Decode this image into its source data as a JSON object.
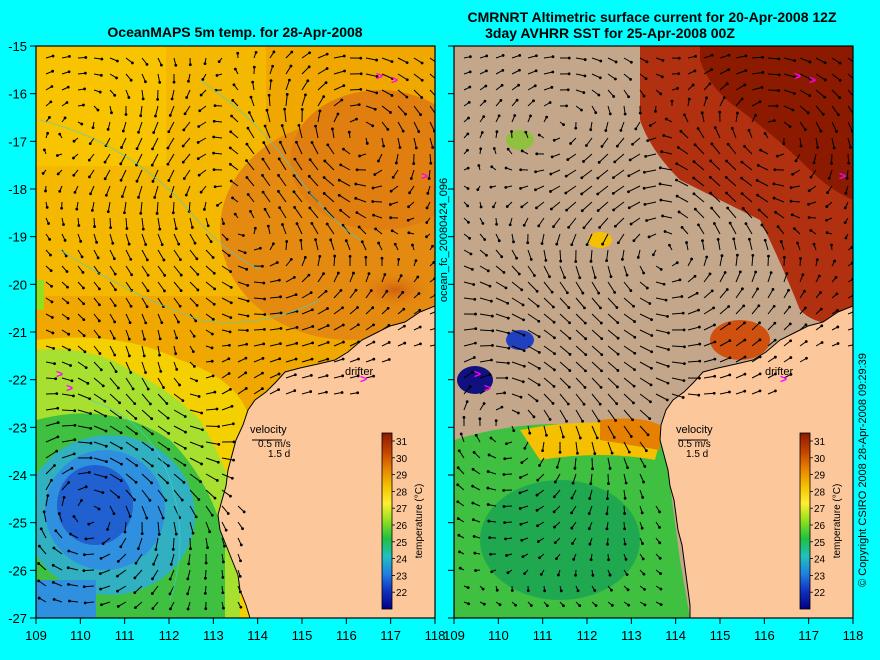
{
  "left_panel": {
    "title": "OceanMAPS 5m temp. for 28-Apr-2008",
    "x_ticks": [
      "109",
      "110",
      "111",
      "112",
      "113",
      "114",
      "115",
      "116",
      "117",
      "118"
    ],
    "y_ticks": [
      "-15",
      "-16",
      "-17",
      "-18",
      "-19",
      "-20",
      "-21",
      "-22",
      "-23",
      "-24",
      "-25",
      "-26",
      "-27"
    ],
    "drifter_label": "drifter",
    "velocity_label": "velocity",
    "velocity_scale": "0.5 m/s",
    "velocity_days": "1.5 d",
    "colorbar_label": "temperature (°C)",
    "colorbar_ticks": [
      "31",
      "30",
      "29",
      "28",
      "27",
      "26",
      "25",
      "24",
      "23",
      "22"
    ]
  },
  "right_panel": {
    "title_line1": "CMRNRT Altimetric surface current for 20-Apr-2008 12Z",
    "title_line2": "3day AVHRR SST for 25-Apr-2008 00Z",
    "x_ticks": [
      "109",
      "110",
      "111",
      "112",
      "113",
      "114",
      "115",
      "116",
      "117",
      "118"
    ],
    "drifter_label": "drifter",
    "velocity_label": "velocity",
    "velocity_scale": "0.5 m/s",
    "velocity_days": "1.5 d",
    "colorbar_label": "temperature (°C)",
    "colorbar_ticks": [
      "31",
      "30",
      "29",
      "28",
      "27",
      "26",
      "25",
      "24",
      "23",
      "22"
    ]
  },
  "side_label": "ocean_fc_20080424_096",
  "copyright": "© Copyright CSIRO 2008   28-Apr-2008 09:29:39",
  "colors": {
    "background": "#00ffff",
    "land": "#fcc89b",
    "cloud": "#c4a78a",
    "coast": "#000000",
    "vector": "#000000",
    "drifter": "#ff00ff",
    "contour": "#40d0d0"
  }
}
